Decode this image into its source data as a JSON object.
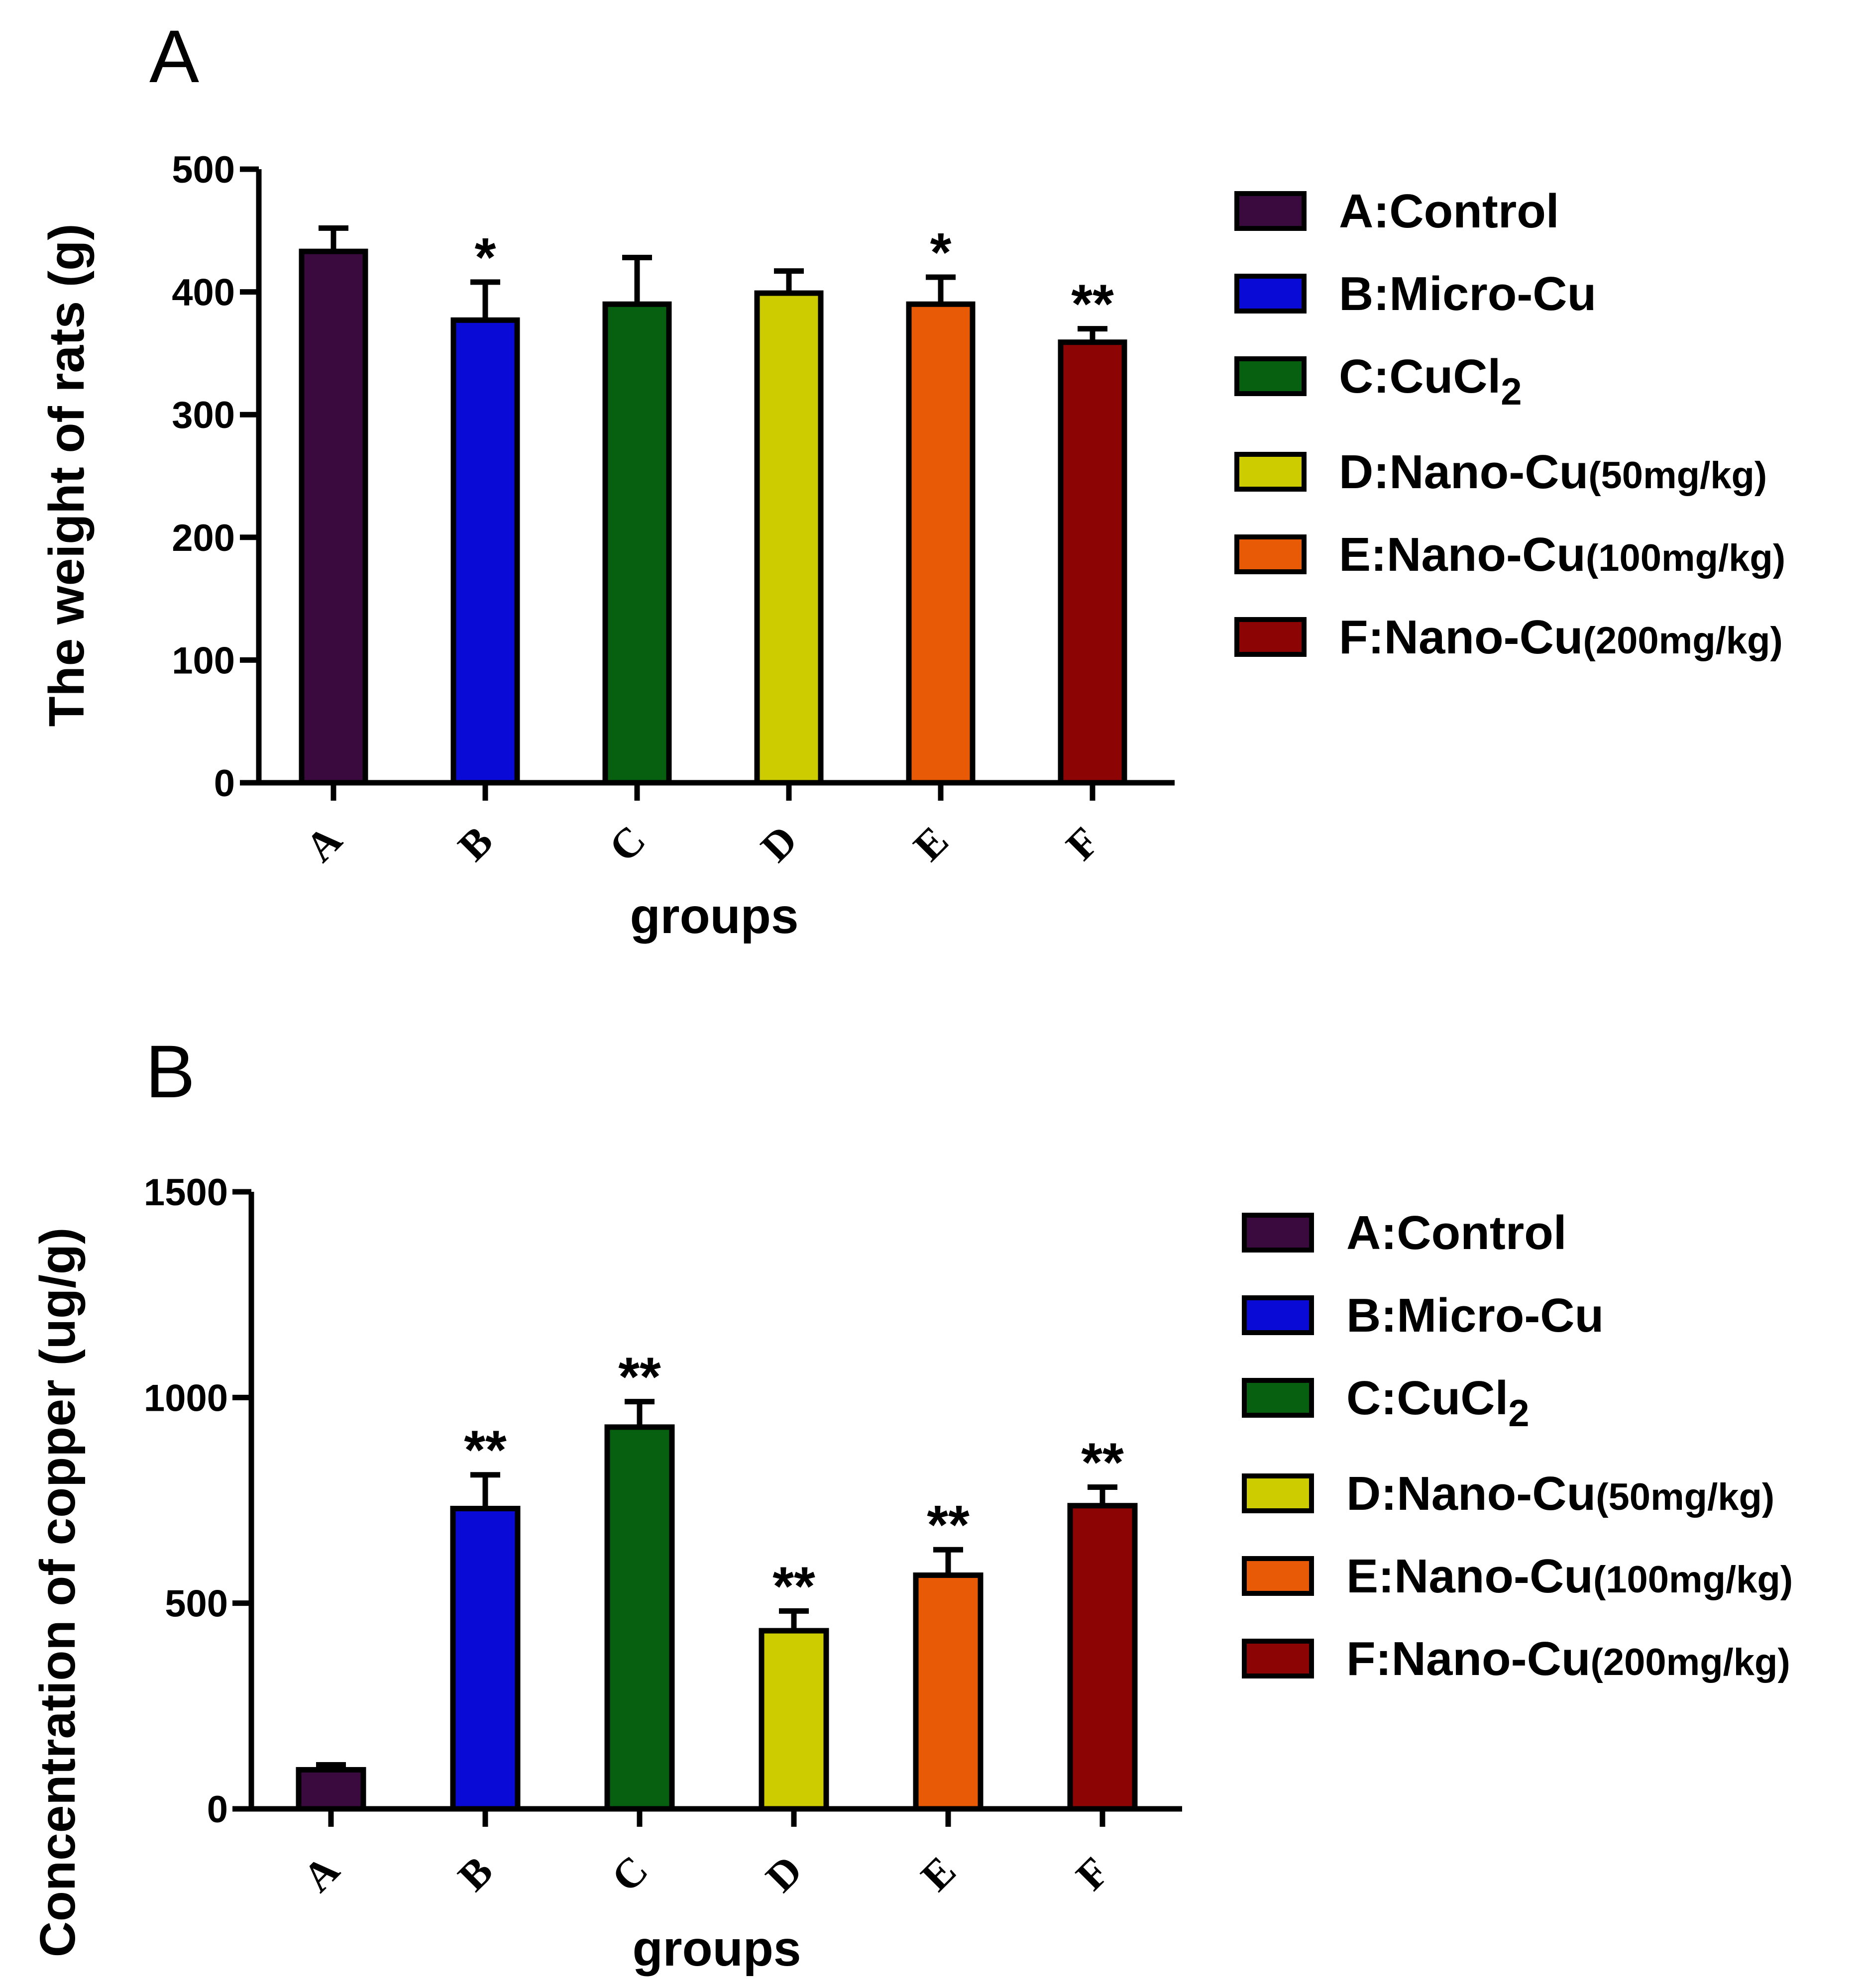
{
  "legend_colors": [
    "#3a0a3f",
    "#0a0ad6",
    "#06600f",
    "#cccc00",
    "#e85a05",
    "#8c0404"
  ],
  "chart_data": [
    {
      "type": "bar",
      "panel": "A",
      "title": "",
      "xlabel": "groups",
      "ylabel": "The weight of rats (g)",
      "ylim": [
        0,
        500
      ],
      "yticks": [
        0,
        100,
        200,
        300,
        400,
        500
      ],
      "categories": [
        "A",
        "B",
        "C",
        "D",
        "E",
        "F"
      ],
      "values": [
        433,
        377,
        390,
        399,
        390,
        359
      ],
      "errors": [
        19,
        31,
        38,
        18,
        22,
        11
      ],
      "significance": [
        "",
        "*",
        "",
        "",
        "*",
        "**"
      ],
      "legend": [
        {
          "main": "A:Control",
          "extra": "",
          "sub": ""
        },
        {
          "main": "B:Micro-Cu",
          "extra": "",
          "sub": ""
        },
        {
          "main": "C:CuCl",
          "extra": "",
          "sub": "2"
        },
        {
          "main": "D:Nano-Cu",
          "extra": "(50mg/kg)",
          "sub": ""
        },
        {
          "main": "E:Nano-Cu",
          "extra": "(100mg/kg)",
          "sub": ""
        },
        {
          "main": "F:Nano-Cu",
          "extra": "(200mg/kg)",
          "sub": ""
        }
      ]
    },
    {
      "type": "bar",
      "panel": "B",
      "title": "",
      "xlabel": "groups",
      "ylabel": "Concentration of copper  (ug/g)",
      "ylim": [
        0,
        1500
      ],
      "yticks": [
        0,
        500,
        1000,
        1500
      ],
      "categories": [
        "A",
        "B",
        "C",
        "D",
        "E",
        "F"
      ],
      "values": [
        95,
        730,
        928,
        433,
        568,
        737
      ],
      "errors": [
        12,
        82,
        62,
        48,
        62,
        45
      ],
      "significance": [
        "",
        "**",
        "**",
        "**",
        "**",
        "**"
      ],
      "legend": [
        {
          "main": "A:Control",
          "extra": "",
          "sub": ""
        },
        {
          "main": "B:Micro-Cu",
          "extra": "",
          "sub": ""
        },
        {
          "main": "C:CuCl",
          "extra": "",
          "sub": "2"
        },
        {
          "main": "D:Nano-Cu",
          "extra": "(50mg/kg)",
          "sub": ""
        },
        {
          "main": "E:Nano-Cu",
          "extra": "(100mg/kg)",
          "sub": ""
        },
        {
          "main": "F:Nano-Cu",
          "extra": "(200mg/kg)",
          "sub": ""
        }
      ]
    }
  ]
}
